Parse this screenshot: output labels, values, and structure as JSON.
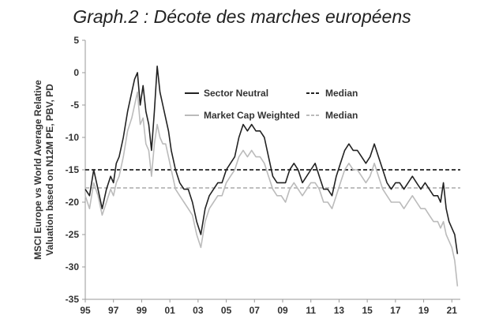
{
  "chart_data": {
    "type": "line",
    "title": "Graph.2 : Décote des marches européens",
    "ylabel_lines": [
      "MSCI Europe vs World Average Relative",
      "Valuation based on N12M PE, PBV, PD"
    ],
    "xlabel": "",
    "ylim": [
      -35,
      5
    ],
    "xlim": [
      1995,
      2021.6
    ],
    "yticks": [
      5,
      0,
      -5,
      -10,
      -15,
      -20,
      -25,
      -30,
      -35
    ],
    "xticks": [
      {
        "value": 1995,
        "label": "95"
      },
      {
        "value": 1997,
        "label": "97"
      },
      {
        "value": 1999,
        "label": "99"
      },
      {
        "value": 2001,
        "label": "01"
      },
      {
        "value": 2003,
        "label": "03"
      },
      {
        "value": 2005,
        "label": "05"
      },
      {
        "value": 2007,
        "label": "07"
      },
      {
        "value": 2009,
        "label": "09"
      },
      {
        "value": 2011,
        "label": "11"
      },
      {
        "value": 2013,
        "label": "13"
      },
      {
        "value": 2015,
        "label": "15"
      },
      {
        "value": 2017,
        "label": "17"
      },
      {
        "value": 2019,
        "label": "19"
      },
      {
        "value": 2021,
        "label": "21"
      }
    ],
    "series": [
      {
        "name": "Sector Neutral",
        "color": "#222222",
        "style": "solid",
        "x": [
          1995.0,
          1995.3,
          1995.6,
          1995.9,
          1996.2,
          1996.5,
          1996.8,
          1997.0,
          1997.2,
          1997.4,
          1997.7,
          1998.0,
          1998.3,
          1998.5,
          1998.7,
          1998.9,
          1999.1,
          1999.3,
          1999.5,
          1999.7,
          1999.9,
          2000.1,
          2000.3,
          2000.5,
          2000.7,
          2000.9,
          2001.1,
          2001.4,
          2001.7,
          2002.0,
          2002.3,
          2002.6,
          2002.9,
          2003.2,
          2003.5,
          2003.8,
          2004.1,
          2004.4,
          2004.7,
          2005.0,
          2005.3,
          2005.6,
          2005.9,
          2006.2,
          2006.5,
          2006.8,
          2007.1,
          2007.4,
          2007.7,
          2008.0,
          2008.3,
          2008.6,
          2008.9,
          2009.2,
          2009.5,
          2009.8,
          2010.1,
          2010.4,
          2010.7,
          2011.0,
          2011.3,
          2011.6,
          2011.9,
          2012.2,
          2012.5,
          2012.8,
          2013.1,
          2013.4,
          2013.7,
          2014.0,
          2014.3,
          2014.6,
          2014.9,
          2015.2,
          2015.5,
          2015.8,
          2016.1,
          2016.4,
          2016.7,
          2017.0,
          2017.3,
          2017.6,
          2017.9,
          2018.2,
          2018.5,
          2018.8,
          2019.1,
          2019.4,
          2019.7,
          2020.0,
          2020.2,
          2020.4,
          2020.6,
          2020.8,
          2021.0,
          2021.2,
          2021.4
        ],
        "y": [
          -18,
          -19,
          -15,
          -18,
          -21,
          -18,
          -16,
          -17,
          -14,
          -13,
          -10,
          -6,
          -3,
          -1,
          0,
          -5,
          -2,
          -6,
          -8,
          -12,
          -6,
          1,
          -3,
          -5,
          -7,
          -9,
          -12,
          -15,
          -17,
          -18,
          -18,
          -20,
          -23,
          -25,
          -21,
          -19,
          -18,
          -17,
          -17,
          -15,
          -14,
          -13,
          -10,
          -8,
          -9,
          -8,
          -9,
          -9,
          -10,
          -13,
          -16,
          -17,
          -17,
          -17,
          -15,
          -14,
          -15,
          -17,
          -16,
          -15,
          -14,
          -16,
          -18,
          -18,
          -19,
          -16,
          -14,
          -12,
          -11,
          -12,
          -12,
          -13,
          -14,
          -13,
          -11,
          -13,
          -15,
          -17,
          -18,
          -17,
          -17,
          -18,
          -17,
          -16,
          -17,
          -18,
          -17,
          -18,
          -19,
          -19,
          -20,
          -17,
          -21,
          -23,
          -24,
          -25,
          -28
        ]
      },
      {
        "name": "Market Cap Weighted",
        "color": "#bbbbbb",
        "style": "solid",
        "x": [
          1995.0,
          1995.3,
          1995.6,
          1995.9,
          1996.2,
          1996.5,
          1996.8,
          1997.0,
          1997.2,
          1997.4,
          1997.7,
          1998.0,
          1998.3,
          1998.5,
          1998.7,
          1998.9,
          1999.1,
          1999.3,
          1999.5,
          1999.7,
          1999.9,
          2000.1,
          2000.3,
          2000.5,
          2000.7,
          2000.9,
          2001.1,
          2001.4,
          2001.7,
          2002.0,
          2002.3,
          2002.6,
          2002.9,
          2003.2,
          2003.5,
          2003.8,
          2004.1,
          2004.4,
          2004.7,
          2005.0,
          2005.3,
          2005.6,
          2005.9,
          2006.2,
          2006.5,
          2006.8,
          2007.1,
          2007.4,
          2007.7,
          2008.0,
          2008.3,
          2008.6,
          2008.9,
          2009.2,
          2009.5,
          2009.8,
          2010.1,
          2010.4,
          2010.7,
          2011.0,
          2011.3,
          2011.6,
          2011.9,
          2012.2,
          2012.5,
          2012.8,
          2013.1,
          2013.4,
          2013.7,
          2014.0,
          2014.3,
          2014.6,
          2014.9,
          2015.2,
          2015.5,
          2015.8,
          2016.1,
          2016.4,
          2016.7,
          2017.0,
          2017.3,
          2017.6,
          2017.9,
          2018.2,
          2018.5,
          2018.8,
          2019.1,
          2019.4,
          2019.7,
          2020.0,
          2020.2,
          2020.4,
          2020.6,
          2020.8,
          2021.0,
          2021.2,
          2021.4
        ],
        "y": [
          -19,
          -21,
          -17,
          -19,
          -22,
          -20,
          -18,
          -19,
          -17,
          -16,
          -13,
          -9,
          -7,
          -5,
          -3,
          -8,
          -7,
          -11,
          -12,
          -16,
          -11,
          -8,
          -10,
          -11,
          -11,
          -13,
          -15,
          -18,
          -19,
          -20,
          -21,
          -22,
          -25,
          -27,
          -23,
          -21,
          -20,
          -19,
          -19,
          -17,
          -16,
          -15,
          -13,
          -12,
          -13,
          -12,
          -13,
          -13,
          -14,
          -16,
          -18,
          -19,
          -19,
          -20,
          -18,
          -17,
          -18,
          -19,
          -18,
          -17,
          -17,
          -18,
          -20,
          -20,
          -21,
          -19,
          -17,
          -15,
          -14,
          -15,
          -15,
          -16,
          -17,
          -16,
          -14,
          -16,
          -18,
          -19,
          -20,
          -20,
          -20,
          -21,
          -20,
          -19,
          -20,
          -21,
          -21,
          -22,
          -23,
          -23,
          -24,
          -23,
          -25,
          -26,
          -27,
          -29,
          -33
        ]
      }
    ],
    "reference_lines": [
      {
        "name": "Median",
        "value": -15,
        "color": "#222222",
        "style": "dashed"
      },
      {
        "name": "Median",
        "value": -17.8,
        "color": "#bbbbbb",
        "style": "dashed"
      }
    ],
    "legend": {
      "placement": "top-center",
      "entries": [
        {
          "label": "Sector Neutral",
          "color": "#222222",
          "style": "solid"
        },
        {
          "label": "Median",
          "color": "#222222",
          "style": "dashed"
        },
        {
          "label": "Market Cap Weighted",
          "color": "#bbbbbb",
          "style": "solid"
        },
        {
          "label": "Median",
          "color": "#bbbbbb",
          "style": "dashed"
        }
      ]
    }
  }
}
